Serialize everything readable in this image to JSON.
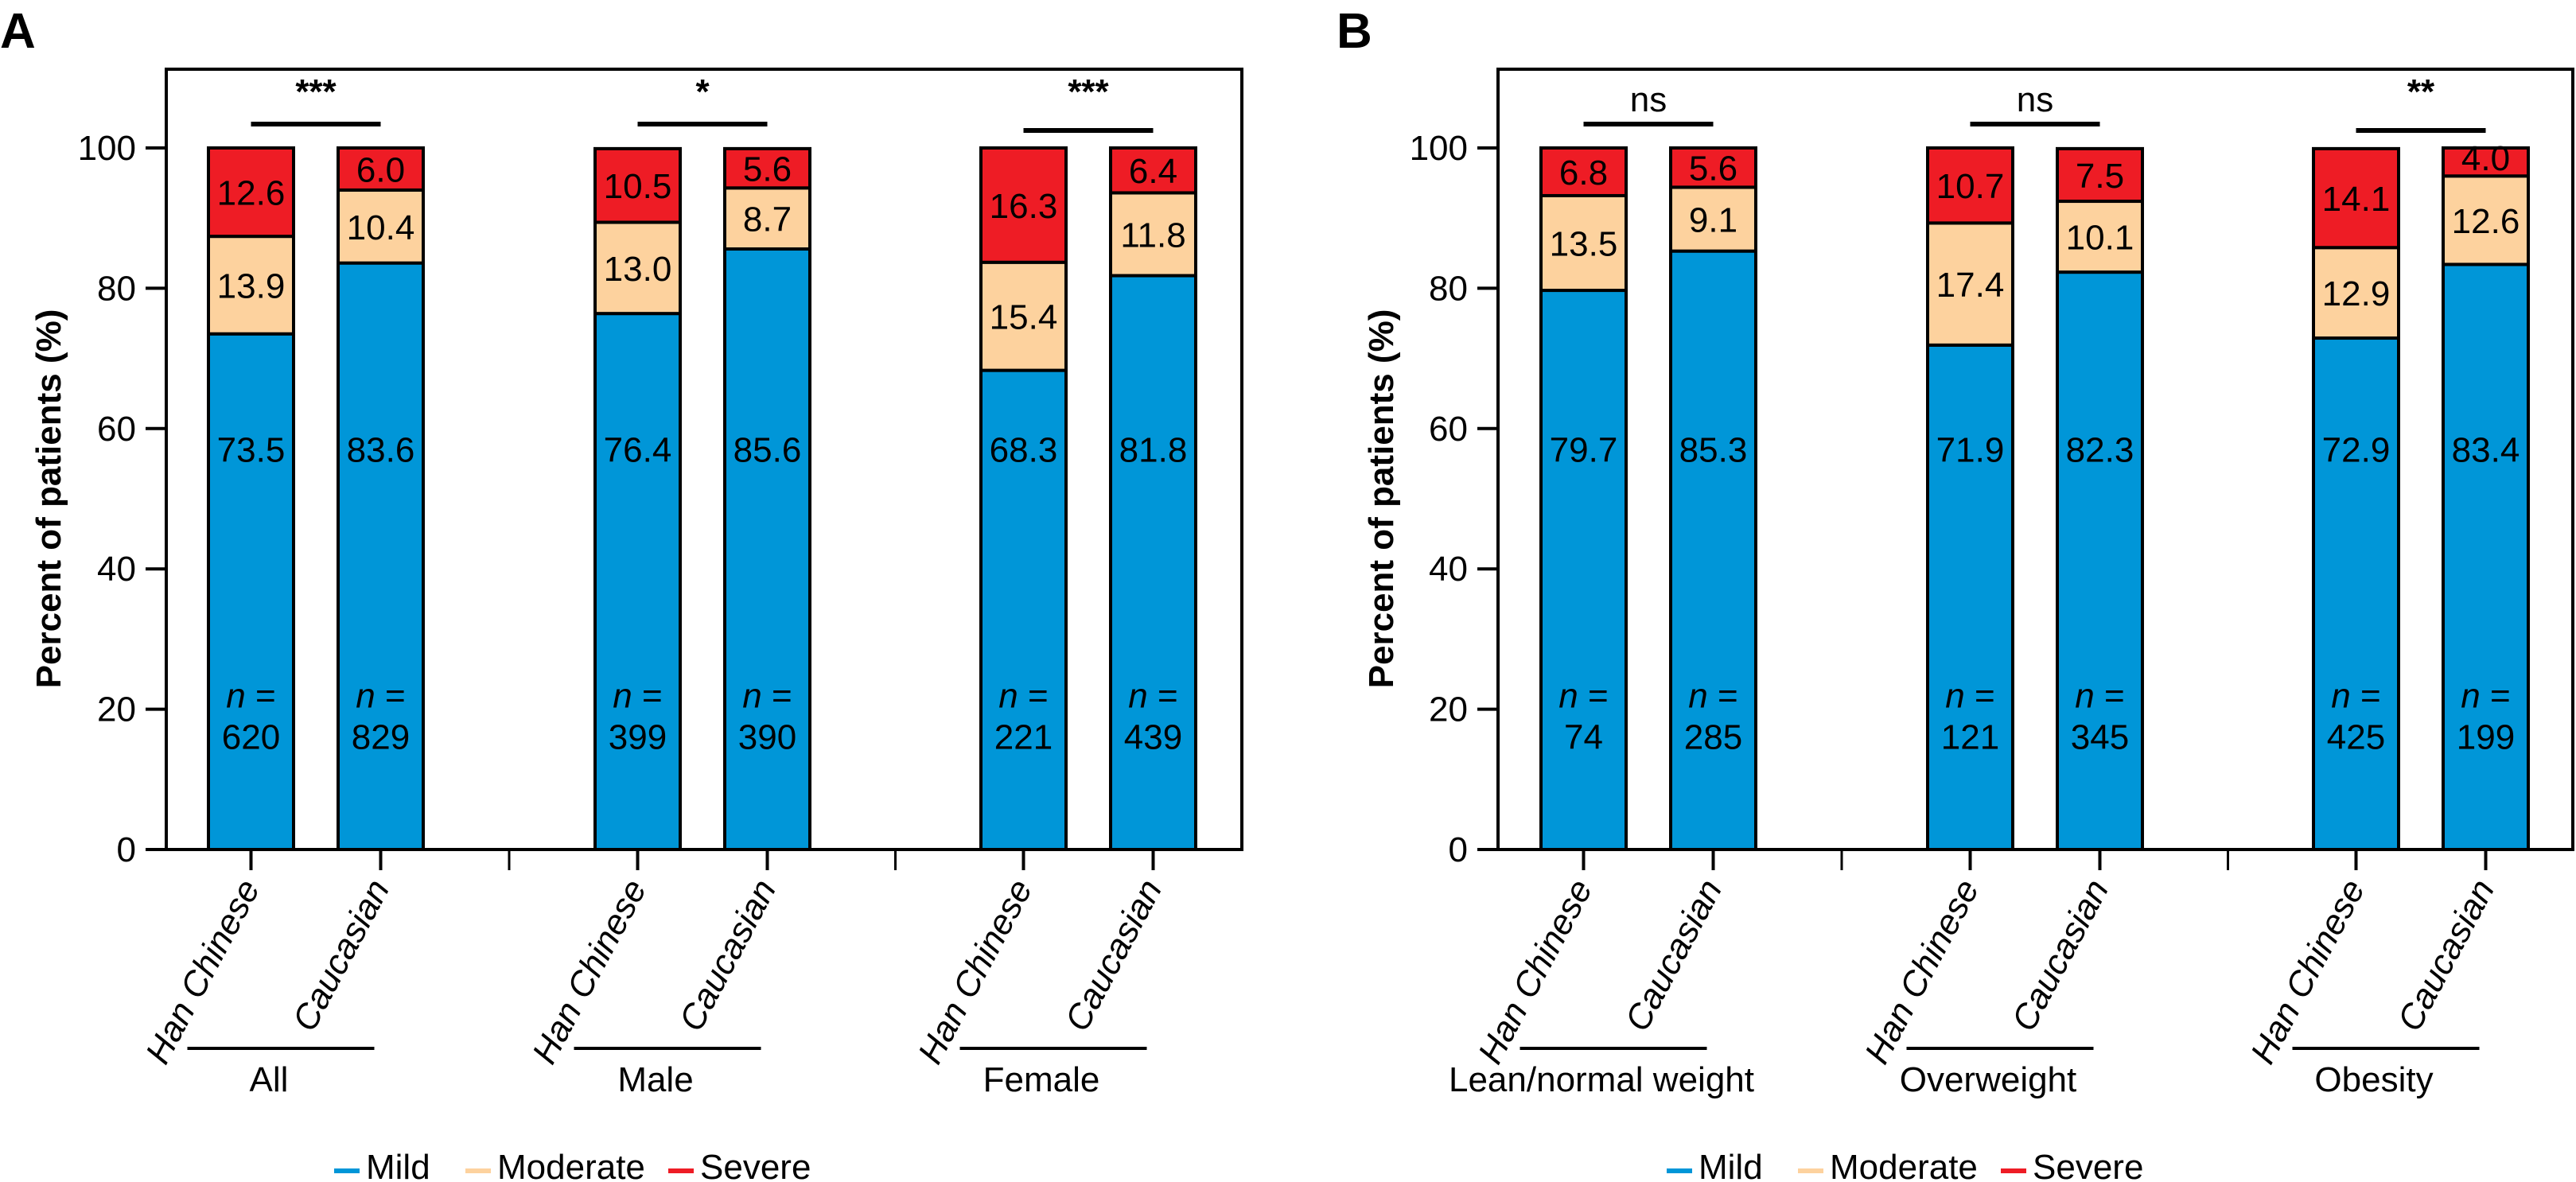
{
  "colors": {
    "Mild": "#0096d8",
    "Moderate": "#fdd29e",
    "Severe": "#ee1c25",
    "axis": "#000000"
  },
  "chart_data": [
    {
      "type": "bar",
      "stacked": true,
      "panel": "A",
      "title": "",
      "xlabel": "",
      "ylabel": "Percent of patients (%)",
      "ylim": [
        0,
        110
      ],
      "yticks": [
        0,
        20,
        40,
        60,
        80,
        100
      ],
      "grid": false,
      "legend_position": "bottom",
      "legend": [
        "Mild",
        "Moderate",
        "Severe"
      ],
      "groups": [
        {
          "label": "All",
          "significance": "***",
          "bars": [
            {
              "category": "Han Chinese",
              "n": 620,
              "Mild": 73.5,
              "Moderate": 13.9,
              "Severe": 12.6
            },
            {
              "category": "Caucasian",
              "n": 829,
              "Mild": 83.6,
              "Moderate": 10.4,
              "Severe": 6.0
            }
          ]
        },
        {
          "label": "Male",
          "significance": "*",
          "bars": [
            {
              "category": "Han Chinese",
              "n": 399,
              "Mild": 76.4,
              "Moderate": 13.0,
              "Severe": 10.5
            },
            {
              "category": "Caucasian",
              "n": 390,
              "Mild": 85.6,
              "Moderate": 8.7,
              "Severe": 5.6
            }
          ]
        },
        {
          "label": "Female",
          "significance": "***",
          "bars": [
            {
              "category": "Han Chinese",
              "n": 221,
              "Mild": 68.3,
              "Moderate": 15.4,
              "Severe": 16.3
            },
            {
              "category": "Caucasian",
              "n": 439,
              "Mild": 81.8,
              "Moderate": 11.8,
              "Severe": 6.4
            }
          ]
        }
      ]
    },
    {
      "type": "bar",
      "stacked": true,
      "panel": "B",
      "title": "",
      "xlabel": "",
      "ylabel": "Percent of patients (%)",
      "ylim": [
        0,
        110
      ],
      "yticks": [
        0,
        20,
        40,
        60,
        80,
        100
      ],
      "grid": false,
      "legend_position": "bottom",
      "legend": [
        "Mild",
        "Moderate",
        "Severe"
      ],
      "groups": [
        {
          "label": "Lean/normal weight",
          "significance": "ns",
          "bars": [
            {
              "category": "Han Chinese",
              "n": 74,
              "Mild": 79.7,
              "Moderate": 13.5,
              "Severe": 6.8
            },
            {
              "category": "Caucasian",
              "n": 285,
              "Mild": 85.3,
              "Moderate": 9.1,
              "Severe": 5.6
            }
          ]
        },
        {
          "label": "Overweight",
          "significance": "ns",
          "bars": [
            {
              "category": "Han Chinese",
              "n": 121,
              "Mild": 71.9,
              "Moderate": 17.4,
              "Severe": 10.7
            },
            {
              "category": "Caucasian",
              "n": 345,
              "Mild": 82.3,
              "Moderate": 10.1,
              "Severe": 7.5
            }
          ]
        },
        {
          "label": "Obesity",
          "significance": "**",
          "bars": [
            {
              "category": "Han Chinese",
              "n": 425,
              "Mild": 72.9,
              "Moderate": 12.9,
              "Severe": 14.1
            },
            {
              "category": "Caucasian",
              "n": 199,
              "Mild": 83.4,
              "Moderate": 12.6,
              "Severe": 4.0
            }
          ]
        }
      ]
    }
  ],
  "labels": {
    "n_prefix": "n",
    "n_equals": " ="
  }
}
